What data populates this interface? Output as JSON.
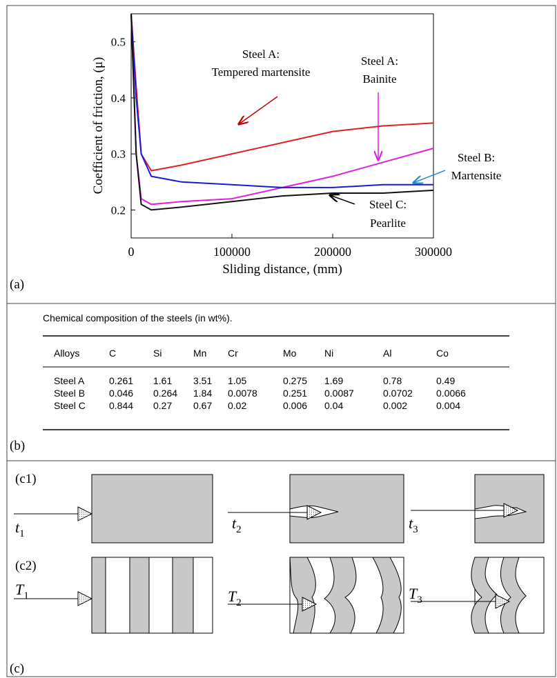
{
  "chart_data": {
    "type": "line",
    "ylabel": "Coefficient of friction, (μ)",
    "xlabel": "Sliding distance, (mm)",
    "x": [
      0,
      5000,
      10000,
      20000,
      50000,
      100000,
      150000,
      200000,
      250000,
      300000
    ],
    "xlim": [
      0,
      300000
    ],
    "xticks": [
      0,
      100000,
      200000,
      300000
    ],
    "ylim": [
      0.15,
      0.55
    ],
    "yticks": [
      0.2,
      0.3,
      0.4,
      0.5
    ],
    "series": [
      {
        "name": "Steel A: Tempered martensite",
        "color": "#e02020",
        "values": [
          0.55,
          0.42,
          0.3,
          0.27,
          0.28,
          0.3,
          0.32,
          0.34,
          0.35,
          0.355
        ]
      },
      {
        "name": "Steel A: Bainite",
        "color": "#e020e0",
        "values": [
          0.55,
          0.3,
          0.22,
          0.21,
          0.215,
          0.22,
          0.24,
          0.26,
          0.285,
          0.31
        ]
      },
      {
        "name": "Steel B: Martensite",
        "color": "#1a1ad0",
        "values": [
          0.55,
          0.4,
          0.3,
          0.26,
          0.25,
          0.245,
          0.24,
          0.24,
          0.245,
          0.245
        ]
      },
      {
        "name": "Steel C: Pearlite",
        "color": "#111111",
        "values": [
          0.55,
          0.3,
          0.21,
          0.2,
          0.205,
          0.215,
          0.225,
          0.23,
          0.23,
          0.235
        ]
      }
    ],
    "annotations": [
      [
        "Steel A:",
        "Tempered martensite"
      ],
      [
        "Steel A:",
        "Bainite"
      ],
      [
        "Steel B:",
        "Martensite"
      ],
      [
        "Steel C:",
        "Pearlite"
      ]
    ],
    "panel": "(a)"
  },
  "table": {
    "caption": "Chemical composition of the steels (in wt%).",
    "header": [
      "Alloys",
      "C",
      "Si",
      "Mn",
      "Cr",
      "Mo",
      "Ni",
      "Al",
      "Co"
    ],
    "rows": [
      [
        "Steel A",
        "0.261",
        "1.61",
        "3.51",
        "1.05",
        "0.275",
        "1.69",
        "0.78",
        "0.49"
      ],
      [
        "Steel B",
        "0.046",
        "0.264",
        "1.84",
        "0.0078",
        "0.251",
        "0.0087",
        "0.0702",
        "0.0066"
      ],
      [
        "Steel C",
        "0.844",
        "0.27",
        "0.67",
        "0.02",
        "0.006",
        "0.04",
        "0.002",
        "0.004"
      ]
    ],
    "panel": "(b)"
  },
  "diagram": {
    "panel": "(c)",
    "rows": [
      {
        "label": "(c1)",
        "stages": [
          {
            "symbol": "t",
            "subscript": "1"
          },
          {
            "symbol": "t",
            "subscript": "2"
          },
          {
            "symbol": "t",
            "subscript": "3"
          }
        ]
      },
      {
        "label": "(c2)",
        "stages": [
          {
            "symbol": "T",
            "subscript": "1"
          },
          {
            "symbol": "T",
            "subscript": "2"
          },
          {
            "symbol": "T",
            "subscript": "3"
          }
        ]
      }
    ]
  }
}
